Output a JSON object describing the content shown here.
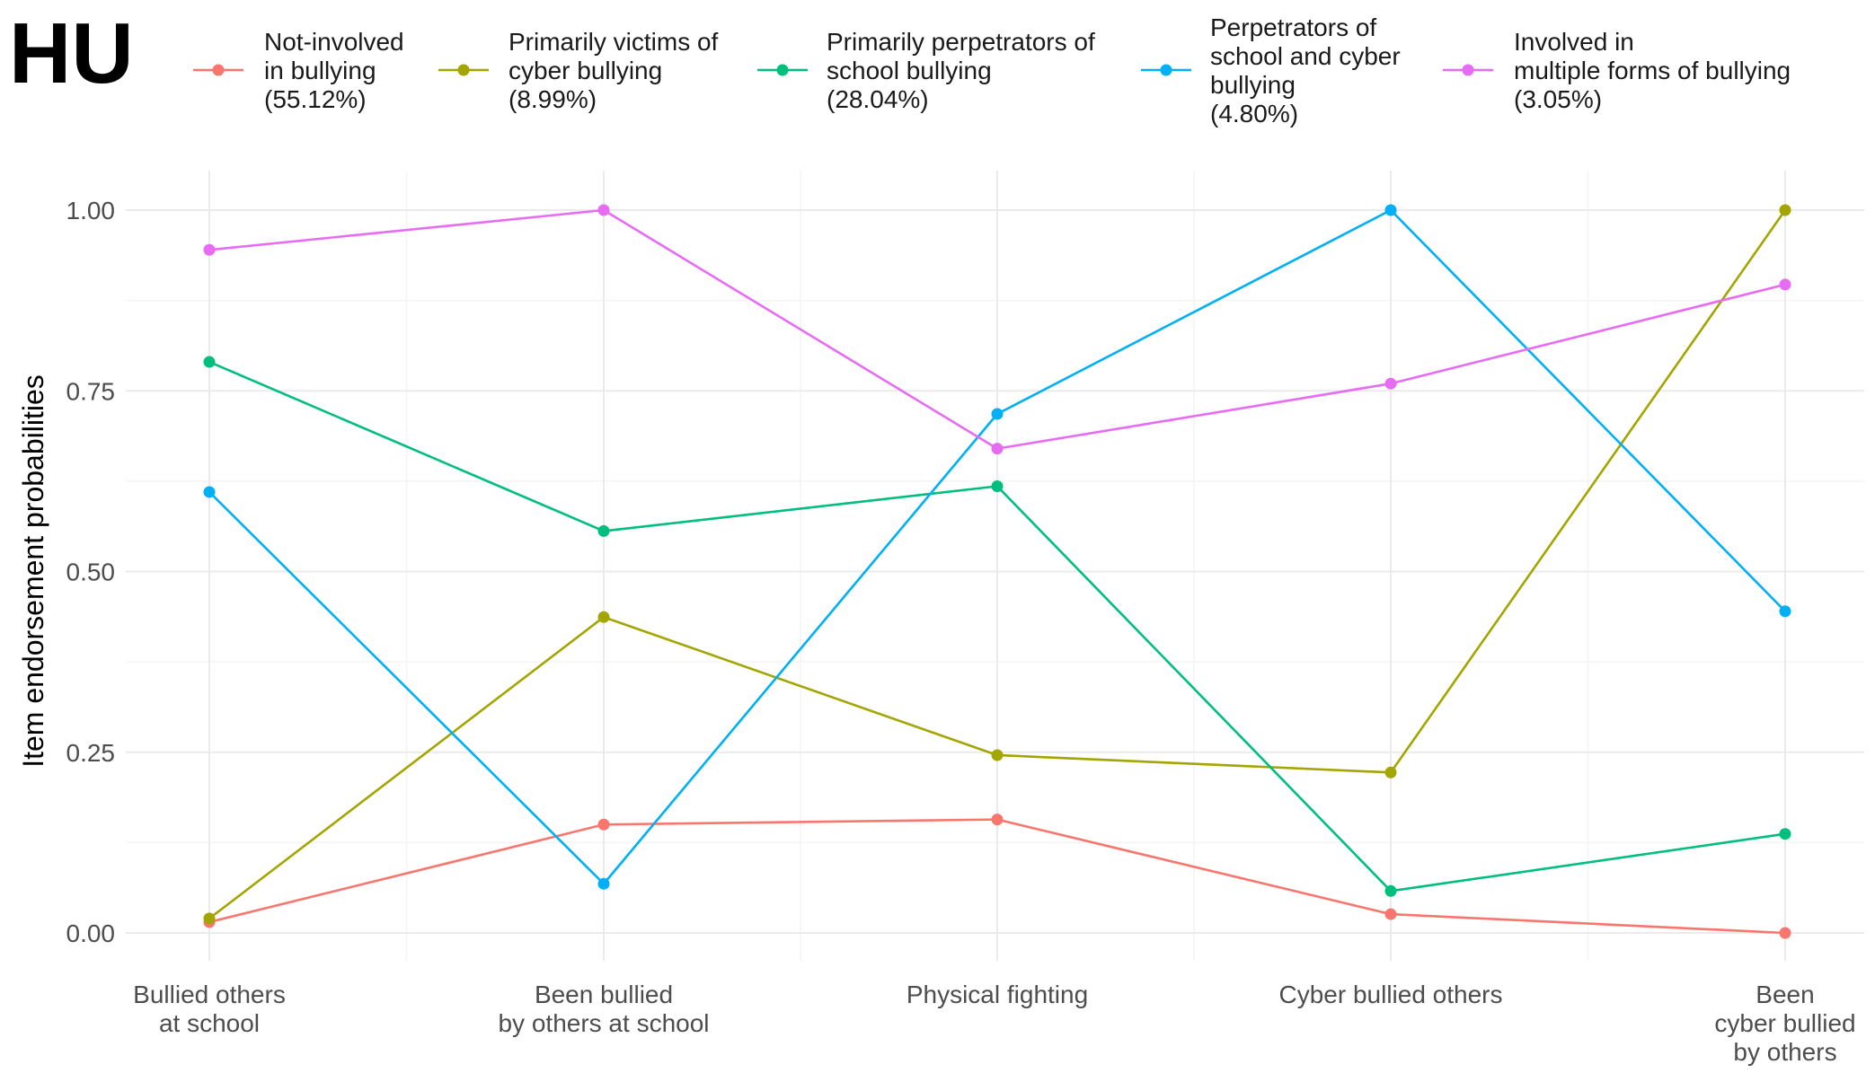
{
  "panel_label": "HU",
  "chart_data": {
    "type": "line",
    "title": "",
    "xlabel": "",
    "ylabel": "Item endorsement probabilities",
    "ylim": [
      0,
      1
    ],
    "y_ticks": [
      "0.00",
      "0.25",
      "0.50",
      "0.75",
      "1.00"
    ],
    "y_tick_values": [
      0,
      0.25,
      0.5,
      0.75,
      1.0
    ],
    "grid": true,
    "legend_position": "top",
    "categories": [
      [
        "Bullied others",
        "at school"
      ],
      [
        "Been bullied",
        "by others at school"
      ],
      [
        "Physical fighting"
      ],
      [
        "Cyber bullied others"
      ],
      [
        "Been",
        "cyber bullied",
        "by others"
      ]
    ],
    "series": [
      {
        "name": "Not-involved in bullying (55.12%)",
        "legend_lines": [
          "Not-involved",
          "in bullying",
          "(55.12%)"
        ],
        "color": "#F8766D",
        "values": [
          0.015,
          0.15,
          0.157,
          0.026,
          0.0
        ]
      },
      {
        "name": "Primarily victims of cyber bullying (8.99%)",
        "legend_lines": [
          "Primarily victims of",
          "cyber bullying",
          "(8.99%)"
        ],
        "color": "#A3A500",
        "values": [
          0.02,
          0.437,
          0.246,
          0.222,
          1.0
        ]
      },
      {
        "name": "Primarily perpetrators of school bullying (28.04%)",
        "legend_lines": [
          "Primarily perpetrators of",
          "school bullying",
          "(28.04%)"
        ],
        "color": "#00BF7D",
        "values": [
          0.79,
          0.556,
          0.618,
          0.058,
          0.137
        ]
      },
      {
        "name": "Perpetrators of school and cyber bullying (4.80%)",
        "legend_lines": [
          "Perpetrators of",
          "school and cyber",
          "bullying",
          "(4.80%)"
        ],
        "color": "#00B0F6",
        "values": [
          0.61,
          0.068,
          0.718,
          1.0,
          0.445
        ]
      },
      {
        "name": "Involved in multiple forms of bullying (3.05%)",
        "legend_lines": [
          "Involved in",
          "multiple forms of bullying",
          "(3.05%)"
        ],
        "color": "#E76BF3",
        "values": [
          0.945,
          1.0,
          0.67,
          0.76,
          0.897
        ]
      }
    ]
  }
}
